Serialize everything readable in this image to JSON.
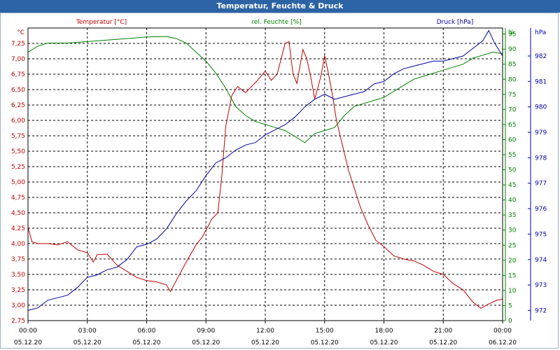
{
  "window": {
    "title": "Temperatur, Feuchte & Druck"
  },
  "colors": {
    "temperature": "#c00000",
    "humidity": "#008000",
    "pressure": "#0000a0",
    "grid": "#000000"
  },
  "chart_data": {
    "type": "line",
    "title": "Temperatur, Feuchte & Druck",
    "x_ticks": [
      {
        "time": "00:00",
        "date": "05.12.20"
      },
      {
        "time": "03:00",
        "date": "05.12.20"
      },
      {
        "time": "06:00",
        "date": "05.12.20"
      },
      {
        "time": "09:00",
        "date": "05.12.20"
      },
      {
        "time": "12:00",
        "date": "05.12.20"
      },
      {
        "time": "15:00",
        "date": "05.12.20"
      },
      {
        "time": "18:00",
        "date": "05.12.20"
      },
      {
        "time": "21:00",
        "date": "05.12.20"
      },
      {
        "time": "00:00",
        "date": "06.12.20"
      }
    ],
    "xlim": [
      0,
      24
    ],
    "axes": {
      "temperature": {
        "label": "Temperatur [°C]",
        "unit": "°C",
        "ylim": [
          2.75,
          7.5
        ],
        "ticks": [
          "2,75",
          "3,00",
          "3,25",
          "3,50",
          "3,75",
          "4,00",
          "4,25",
          "4,50",
          "4,75",
          "5,00",
          "5,25",
          "5,50",
          "5,75",
          "6,00",
          "6,25",
          "6,50",
          "6,75",
          "7,00",
          "7,25"
        ]
      },
      "humidity": {
        "label": "rel. Feuchte [%]",
        "unit": "%",
        "ylim": [
          0,
          97
        ],
        "ticks": [
          "0",
          "5",
          "10",
          "15",
          "20",
          "25",
          "30",
          "35",
          "40",
          "45",
          "50",
          "55",
          "60",
          "65",
          "70",
          "75",
          "80",
          "85",
          "90",
          "95"
        ]
      },
      "pressure": {
        "label": "Druck [hPa]",
        "unit": "hPa",
        "ylim": [
          971.6,
          983.1
        ],
        "ticks": [
          "972",
          "973",
          "974",
          "975",
          "976",
          "977",
          "978",
          "979",
          "980",
          "981",
          "982"
        ]
      }
    },
    "grid": true,
    "series": [
      {
        "name": "Temperatur [°C]",
        "axis": "temperature",
        "x": [
          0,
          0.2,
          0.5,
          1,
          1.5,
          2,
          2.5,
          3,
          3.3,
          3.5,
          4,
          4.5,
          5,
          5.5,
          6,
          6.5,
          7,
          7.2,
          7.5,
          8,
          8.5,
          8.8,
          9,
          9.3,
          9.6,
          9.8,
          10,
          10.3,
          10.6,
          11,
          11.3,
          11.6,
          12,
          12.3,
          12.6,
          13,
          13.2,
          13.4,
          13.6,
          13.9,
          14.1,
          14.3,
          14.5,
          14.8,
          15,
          15.2,
          15.4,
          15.6,
          15.9,
          16.2,
          16.5,
          16.8,
          17.2,
          17.6,
          18,
          18.5,
          19,
          19.5,
          20,
          20.5,
          21,
          21.5,
          22,
          22.5,
          22.9,
          23.3,
          23.7,
          24
        ],
        "values": [
          4.27,
          4.03,
          4.0,
          4.0,
          3.98,
          4.03,
          3.9,
          3.85,
          3.7,
          3.82,
          3.83,
          3.65,
          3.55,
          3.45,
          3.4,
          3.38,
          3.33,
          3.22,
          3.4,
          3.7,
          3.98,
          4.1,
          4.22,
          4.4,
          4.5,
          5.1,
          5.9,
          6.4,
          6.55,
          6.45,
          6.55,
          6.65,
          6.8,
          6.65,
          6.75,
          7.25,
          7.28,
          6.75,
          6.6,
          7.15,
          7.0,
          6.7,
          6.35,
          6.7,
          7.05,
          6.75,
          6.4,
          6.0,
          5.6,
          5.2,
          4.9,
          4.6,
          4.3,
          4.05,
          3.95,
          3.8,
          3.75,
          3.72,
          3.65,
          3.55,
          3.5,
          3.35,
          3.25,
          3.05,
          2.95,
          3.02,
          3.08,
          3.1
        ]
      },
      {
        "name": "rel. Feuchte [%]",
        "axis": "humidity",
        "x": [
          0,
          0.5,
          1,
          2,
          3,
          4,
          5,
          6,
          7,
          7.5,
          8,
          8.5,
          9,
          9.5,
          10,
          10.5,
          11,
          11.5,
          12,
          12.5,
          13,
          13.5,
          14,
          14.5,
          15,
          15.5,
          16,
          16.5,
          17,
          17.5,
          18,
          18.5,
          19,
          19.5,
          20,
          21,
          22,
          22.5,
          23,
          23.5,
          24
        ],
        "values": [
          89,
          91,
          92,
          92,
          92.5,
          93,
          93.5,
          94,
          94.2,
          93.5,
          92,
          89,
          86,
          82,
          77,
          71,
          68,
          66,
          65,
          64,
          63,
          61,
          59,
          62,
          63,
          64,
          68,
          71,
          72,
          73,
          74,
          76,
          78,
          80,
          81,
          83,
          85,
          87,
          88,
          89,
          88.5
        ]
      },
      {
        "name": "Druck [hPa]",
        "axis": "pressure",
        "x": [
          0,
          0.5,
          1,
          1.5,
          2,
          2.5,
          3,
          3.5,
          4,
          4.5,
          5,
          5.5,
          6,
          6.5,
          7,
          7.5,
          8,
          8.5,
          9,
          9.5,
          10,
          10.5,
          11,
          11.5,
          12,
          12.5,
          13,
          13.5,
          14,
          14.5,
          15,
          15.5,
          16,
          16.5,
          17,
          17.5,
          18,
          18.5,
          19,
          19.5,
          20,
          20.5,
          21,
          21.5,
          22,
          22.5,
          23,
          23.3,
          23.6,
          24
        ],
        "values": [
          972.0,
          972.1,
          972.4,
          972.5,
          972.6,
          972.9,
          973.3,
          973.4,
          973.6,
          973.7,
          974.0,
          974.5,
          974.6,
          974.8,
          975.2,
          975.8,
          976.3,
          976.7,
          977.3,
          977.8,
          978.0,
          978.3,
          978.5,
          978.6,
          978.9,
          979.1,
          979.3,
          979.6,
          980.0,
          980.3,
          980.5,
          980.3,
          980.4,
          980.5,
          980.6,
          980.9,
          981.0,
          981.3,
          981.5,
          981.6,
          981.7,
          981.8,
          981.8,
          981.9,
          982.0,
          982.3,
          982.6,
          983.0,
          982.5,
          982.0
        ]
      }
    ]
  }
}
